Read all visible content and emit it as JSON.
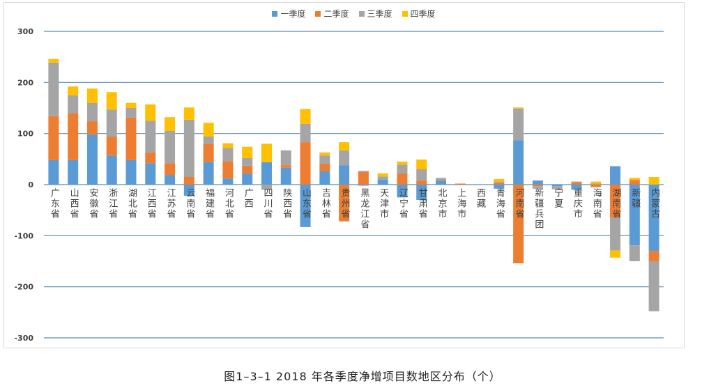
{
  "chart_data": {
    "type": "bar",
    "stacked": true,
    "ylim": [
      -300,
      300
    ],
    "y_ticks": [
      300,
      200,
      100,
      0,
      -100,
      -200,
      -300
    ],
    "grid": true,
    "legend_position": "top",
    "gridline_color": "#5a8db3",
    "categories": [
      "广东省",
      "山西省",
      "安徽省",
      "浙江省",
      "湖北省",
      "江西省",
      "江苏省",
      "云南省",
      "福建省",
      "河北省",
      "广西",
      "四川省",
      "陕西省",
      "山东省",
      "吉林省",
      "贵州省",
      "黑龙江省",
      "天津市",
      "辽宁省",
      "甘肃省",
      "北京市",
      "上海市",
      "西藏",
      "青海省",
      "河南省",
      "新疆兵团",
      "宁夏",
      "重庆市",
      "海南省",
      "湖南省",
      "新疆",
      "内蒙古"
    ],
    "series": [
      {
        "name": "一季度",
        "color": "#5b9bd5",
        "values": [
          48,
          48,
          98,
          57,
          48,
          42,
          19,
          -22,
          44,
          12,
          22,
          44,
          33,
          -83,
          26,
          38,
          -2,
          10,
          -25,
          -30,
          8,
          0,
          0,
          -8,
          87,
          8,
          -3,
          -10,
          0,
          36,
          -119,
          -130
        ]
      },
      {
        "name": "二季度",
        "color": "#ed7d31",
        "values": [
          86,
          92,
          26,
          37,
          83,
          21,
          23,
          15,
          36,
          34,
          15,
          0,
          5,
          83,
          15,
          -72,
          25,
          0,
          22,
          8,
          1,
          2,
          0,
          3,
          -154,
          -3,
          0,
          5,
          -5,
          -65,
          9,
          -20
        ]
      },
      {
        "name": "三季度",
        "color": "#a5a5a5",
        "values": [
          105,
          35,
          36,
          53,
          19,
          62,
          63,
          112,
          14,
          26,
          15,
          -10,
          29,
          36,
          16,
          29,
          2,
          6,
          17,
          22,
          4,
          0,
          0,
          3,
          62,
          -5,
          -6,
          1,
          2,
          -64,
          -31,
          -98
        ]
      },
      {
        "name": "四季度",
        "color": "#ffc000",
        "values": [
          7,
          17,
          28,
          34,
          10,
          32,
          27,
          24,
          27,
          9,
          22,
          36,
          0,
          29,
          6,
          16,
          0,
          6,
          6,
          19,
          0,
          0,
          0,
          5,
          2,
          0,
          0,
          0,
          4,
          -14,
          4,
          15
        ]
      }
    ]
  },
  "caption": "图1–3–1  2018 年各季度净增项目数地区分布（个）"
}
